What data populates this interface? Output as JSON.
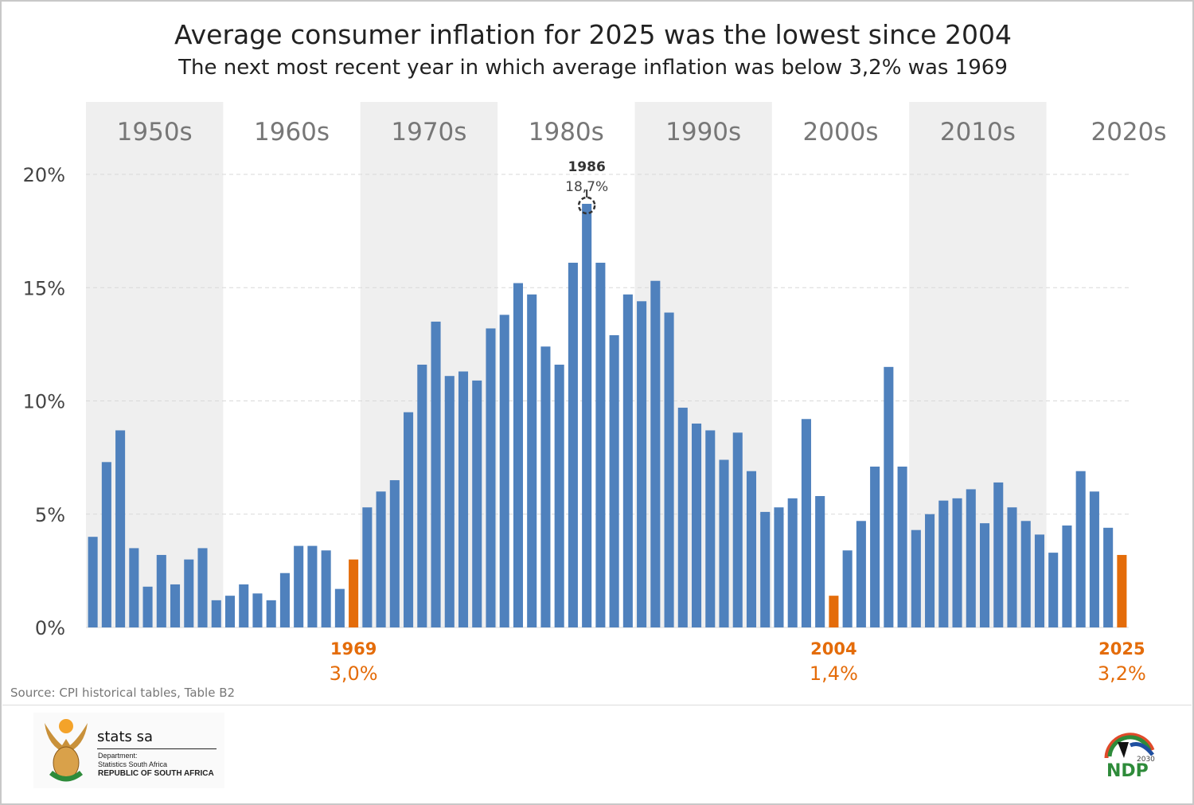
{
  "chart_data": {
    "type": "bar",
    "title": "Average consumer inflation for 2025 was the lowest since 2004",
    "subtitle": "The next most recent year in which average inflation was below 3,2% was 1969",
    "xlabel": "",
    "ylabel": "",
    "ylim": [
      0,
      20
    ],
    "yticks": [
      "0%",
      "5%",
      "10%",
      "15%",
      "20%"
    ],
    "ytick_values": [
      0,
      5,
      10,
      15,
      20
    ],
    "grid": true,
    "decades": [
      "1950s",
      "1960s",
      "1970s",
      "1980s",
      "1990s",
      "2000s",
      "2010s",
      "2020s"
    ],
    "x": [
      1950,
      1951,
      1952,
      1953,
      1954,
      1955,
      1956,
      1957,
      1958,
      1959,
      1960,
      1961,
      1962,
      1963,
      1964,
      1965,
      1966,
      1967,
      1968,
      1969,
      1970,
      1971,
      1972,
      1973,
      1974,
      1975,
      1976,
      1977,
      1978,
      1979,
      1980,
      1981,
      1982,
      1983,
      1984,
      1985,
      1986,
      1987,
      1988,
      1989,
      1990,
      1991,
      1992,
      1993,
      1994,
      1995,
      1996,
      1997,
      1998,
      1999,
      2000,
      2001,
      2002,
      2003,
      2004,
      2005,
      2006,
      2007,
      2008,
      2009,
      2010,
      2011,
      2012,
      2013,
      2014,
      2015,
      2016,
      2017,
      2018,
      2019,
      2020,
      2021,
      2022,
      2023,
      2024,
      2025
    ],
    "values": [
      4.0,
      7.3,
      8.7,
      3.5,
      1.8,
      3.2,
      1.9,
      3.0,
      3.5,
      1.2,
      1.4,
      1.9,
      1.5,
      1.2,
      2.4,
      3.6,
      3.6,
      3.4,
      1.7,
      3.0,
      5.3,
      6.0,
      6.5,
      9.5,
      11.6,
      13.5,
      11.1,
      11.3,
      10.9,
      13.2,
      13.8,
      15.2,
      14.7,
      12.4,
      11.6,
      16.1,
      18.7,
      16.1,
      12.9,
      14.7,
      14.4,
      15.3,
      13.9,
      9.7,
      9.0,
      8.7,
      7.4,
      8.6,
      6.9,
      5.1,
      5.3,
      5.7,
      9.2,
      5.8,
      1.4,
      3.4,
      4.7,
      7.1,
      11.5,
      7.1,
      4.3,
      5.0,
      5.6,
      5.7,
      6.1,
      4.6,
      6.4,
      5.3,
      4.7,
      4.1,
      3.3,
      4.5,
      6.9,
      6.0,
      4.4,
      3.2
    ],
    "highlighted": [
      1969,
      2004,
      2025
    ],
    "annotations": [
      {
        "year": "1986",
        "label": "18,7%",
        "style": "dark"
      },
      {
        "year": "1969",
        "label": "3,0%",
        "style": "orange"
      },
      {
        "year": "2004",
        "label": "1,4%",
        "style": "orange"
      },
      {
        "year": "2025",
        "label": "3,2%",
        "style": "orange"
      }
    ],
    "colors": {
      "bar": "#4f81bd",
      "highlight": "#e46c0a",
      "band": "#efefef",
      "grid": "#d9d9d9"
    }
  },
  "source": "Source: CPI historical tables, Table B2",
  "footer": {
    "brand": "stats sa",
    "dept_line1": "Department:",
    "dept_line2": "Statistics South Africa",
    "dept_line3": "REPUBLIC OF SOUTH AFRICA",
    "ndp_logo": "NDP",
    "ndp_year": "2030"
  }
}
